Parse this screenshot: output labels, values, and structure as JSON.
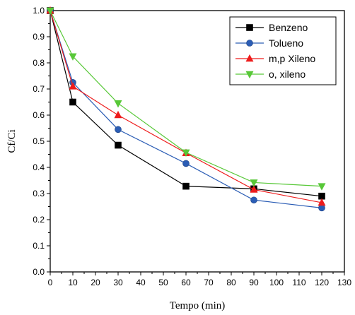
{
  "chart_data": {
    "type": "line",
    "xlabel": "Tempo (min)",
    "ylabel": "Cf/Ci",
    "xlim": [
      0,
      130
    ],
    "ylim": [
      0.0,
      1.0
    ],
    "xticks": [
      0,
      10,
      20,
      30,
      40,
      50,
      60,
      70,
      80,
      90,
      100,
      110,
      120,
      130
    ],
    "yticks": [
      0.0,
      0.1,
      0.2,
      0.3,
      0.4,
      0.5,
      0.6,
      0.7,
      0.8,
      0.9,
      1.0
    ],
    "x": [
      0,
      10,
      30,
      60,
      90,
      120
    ],
    "grid": false,
    "legend_position": "top-right",
    "series": [
      {
        "name": "Benzeno",
        "color": "#000000",
        "marker": "square",
        "values": [
          1.0,
          0.65,
          0.485,
          0.328,
          0.318,
          0.29
        ]
      },
      {
        "name": "Tolueno",
        "color": "#2b5db5",
        "marker": "circle",
        "values": [
          1.0,
          0.725,
          0.545,
          0.415,
          0.275,
          0.245
        ]
      },
      {
        "name": "m,p Xileno",
        "color": "#ee1c1c",
        "marker": "triangle-up",
        "values": [
          1.0,
          0.71,
          0.6,
          0.455,
          0.315,
          0.265
        ]
      },
      {
        "name": "o, xileno",
        "color": "#58c838",
        "marker": "triangle-down",
        "values": [
          1.0,
          0.825,
          0.645,
          0.457,
          0.342,
          0.328
        ]
      }
    ]
  }
}
